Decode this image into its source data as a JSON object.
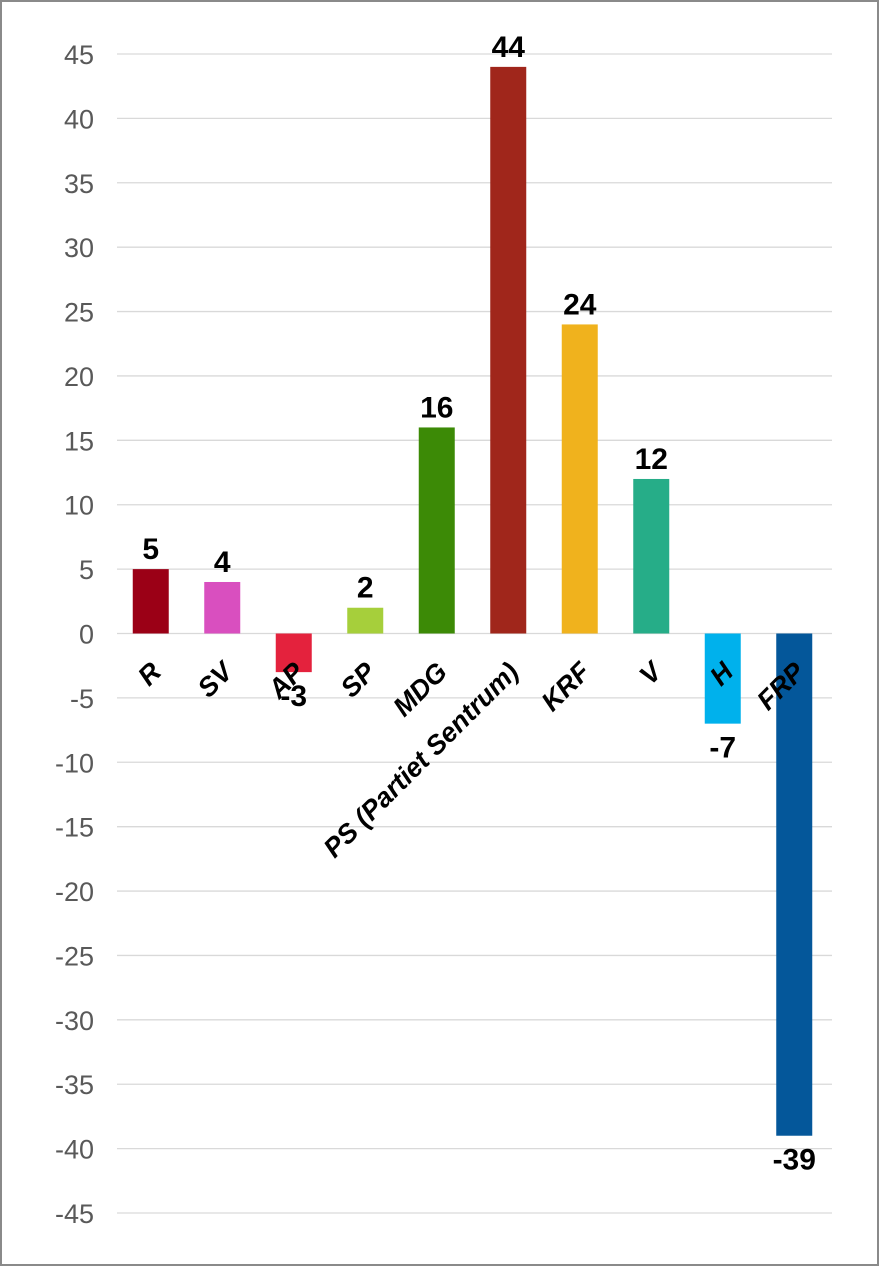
{
  "chart_data": {
    "type": "bar",
    "title": "",
    "xlabel": "",
    "ylabel": "",
    "ylim": [
      -45,
      45
    ],
    "yticks": [
      45,
      40,
      35,
      30,
      25,
      20,
      15,
      10,
      5,
      0,
      -5,
      -10,
      -15,
      -20,
      -25,
      -30,
      -35,
      -40,
      -45
    ],
    "grid": true,
    "legend": "none",
    "categories": [
      "R",
      "SV",
      "AP",
      "SP",
      "MDG",
      "PS (Partiet Sentrum)",
      "KRF",
      "V",
      "H",
      "FRP"
    ],
    "values": [
      5,
      4,
      -3,
      2,
      16,
      44,
      24,
      12,
      -7,
      -39
    ],
    "colors": [
      "#9b0016",
      "#d94fbf",
      "#e4223d",
      "#a6cf3b",
      "#3c8a06",
      "#a0261b",
      "#f0b21d",
      "#26ad88",
      "#00b1ec",
      "#04579a"
    ],
    "data_labels": [
      "5",
      "4",
      "-3",
      "2",
      "16",
      "44",
      "24",
      "12",
      "-7",
      "-39"
    ]
  }
}
